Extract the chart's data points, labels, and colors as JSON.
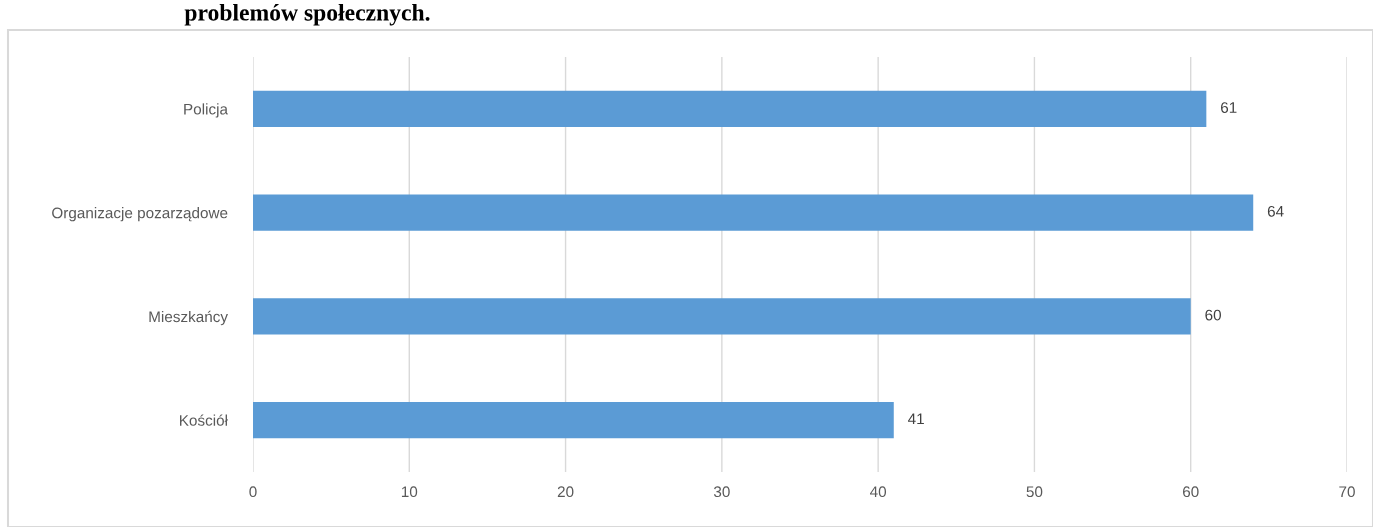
{
  "chart_data": {
    "type": "bar",
    "orientation": "horizontal",
    "title": "problemów społecznych.",
    "categories": [
      "Policja",
      "Organizacje pozarządowe",
      "Mieszkańcy",
      "Kościół"
    ],
    "values": [
      61,
      64,
      60,
      41
    ],
    "color": "#5b9bd5",
    "xlim": [
      0,
      70
    ],
    "xticks": [
      0,
      10,
      20,
      30,
      40,
      50,
      60,
      70
    ],
    "grid": "x",
    "data_labels": true
  }
}
